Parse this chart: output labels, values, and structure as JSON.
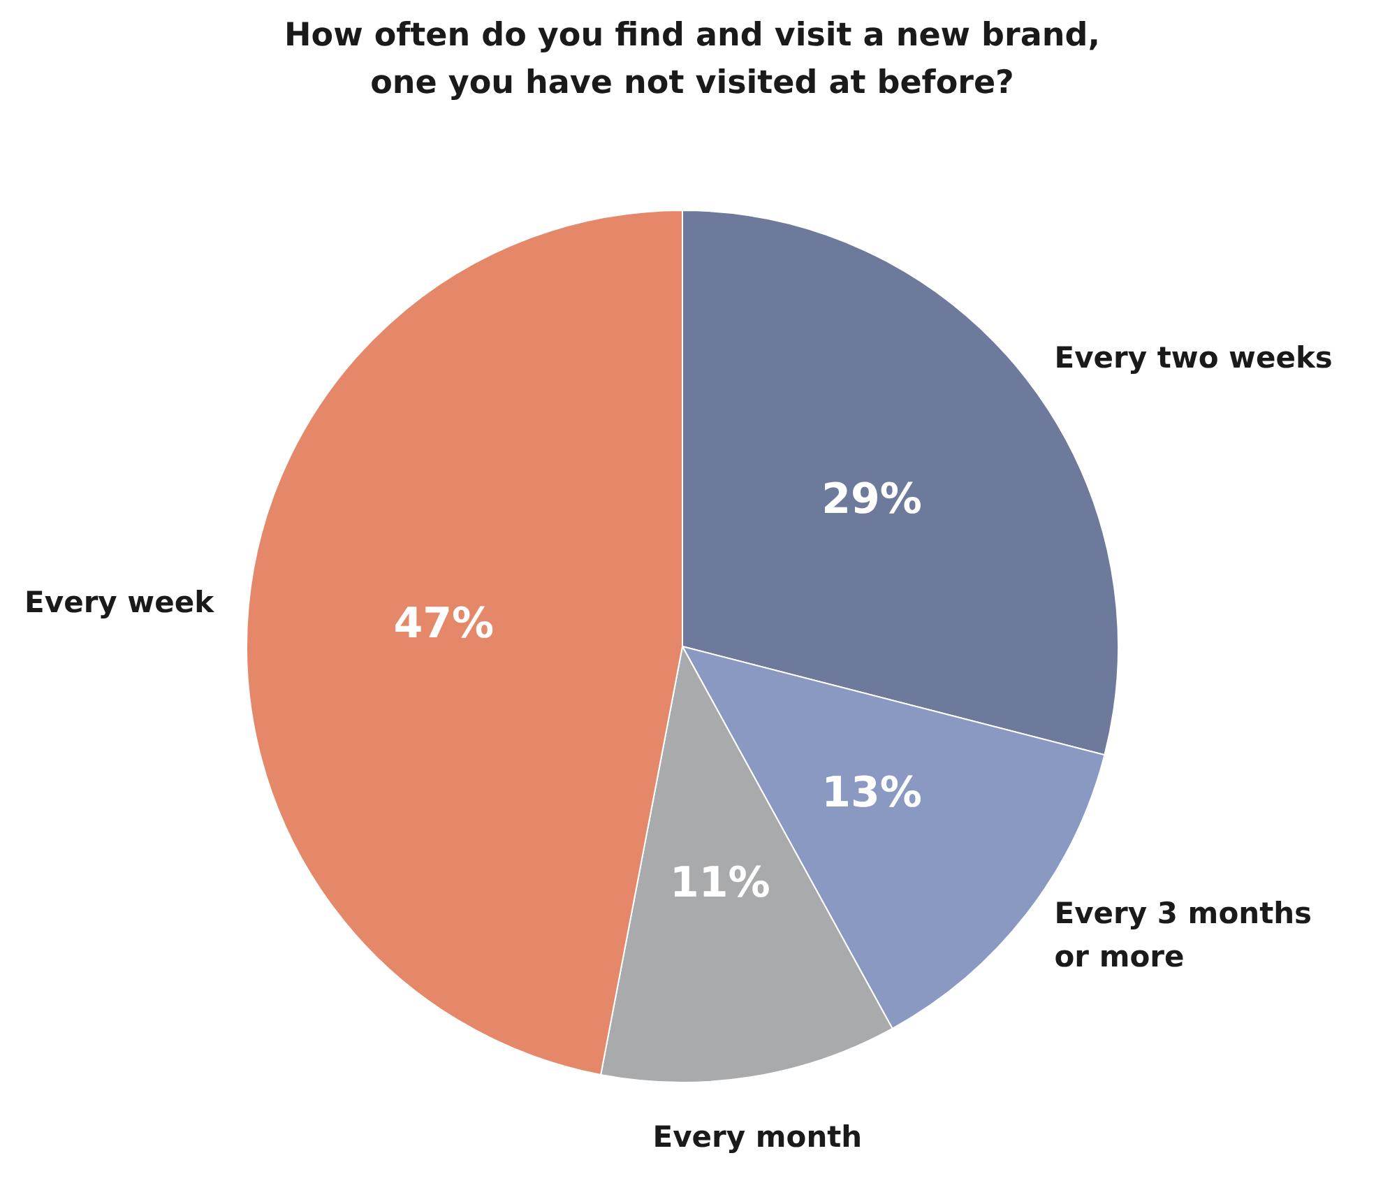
{
  "chart_data": {
    "type": "pie",
    "title": "How often do you find and visit a new brand, one you have not visited at before?",
    "categories": [
      "Every two weeks",
      "Every 3 months or more",
      "Every month",
      "Every week"
    ],
    "values": [
      29,
      13,
      11,
      47
    ],
    "colors": [
      "#6e7a9c",
      "#8999c2",
      "#a9aaac",
      "#e5886a"
    ],
    "value_labels": [
      "29%",
      "13%",
      "11%",
      "47%"
    ]
  }
}
